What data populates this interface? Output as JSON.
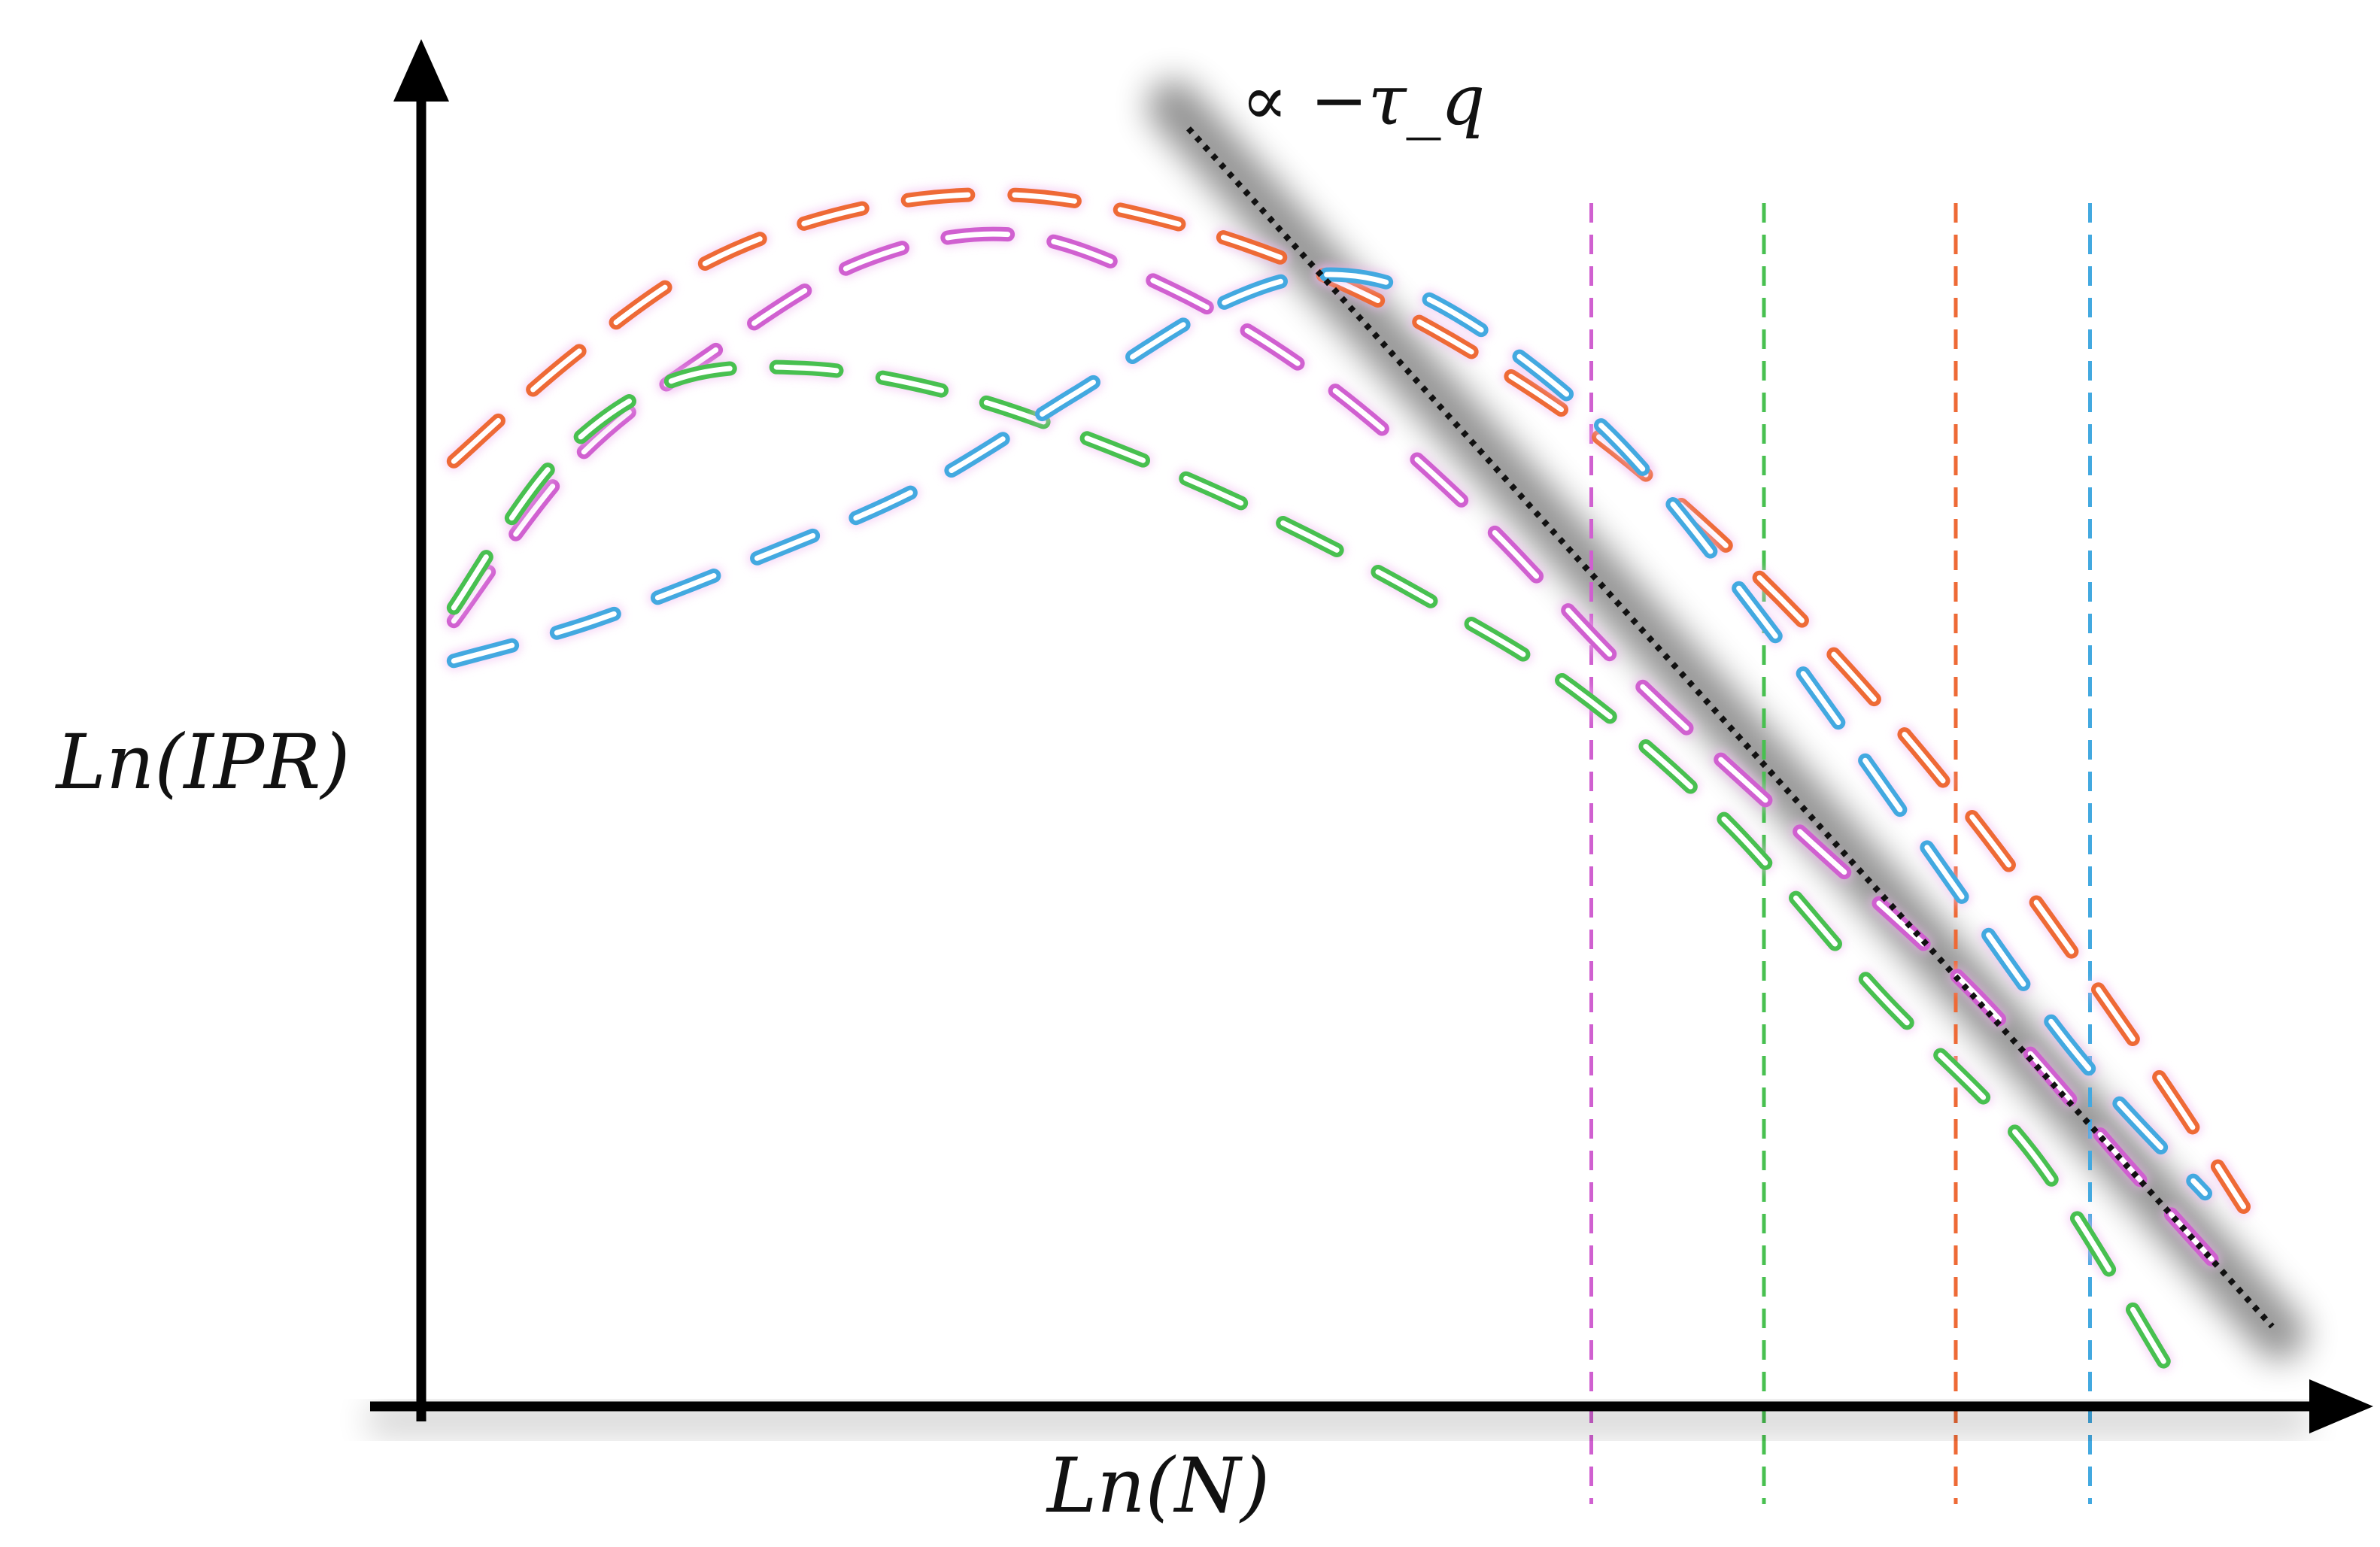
{
  "chart_data": {
    "type": "line",
    "xlabel": "Ln(N)",
    "ylabel": "Ln(IPR)",
    "xlim": [
      0,
      10
    ],
    "ylim": [
      0,
      10
    ],
    "grid": false,
    "legend": "none",
    "annotation": "∝ −τ_q",
    "series": [
      {
        "color": "#ee6a36",
        "style": "dashed",
        "x": [
          0.17,
          0.8,
          1.5,
          2.3,
          3.1,
          3.9,
          4.7,
          5.5,
          6.3,
          7.2,
          8.1,
          9.0,
          9.5
        ],
        "y": [
          7.1,
          7.9,
          8.6,
          9.0,
          9.1,
          8.9,
          8.5,
          7.9,
          7.1,
          5.9,
          4.4,
          2.6,
          1.5
        ]
      },
      {
        "color": "#d060d0",
        "style": "dashed",
        "x": [
          0.17,
          0.8,
          1.5,
          2.3,
          3.1,
          3.9,
          4.7,
          5.5,
          6.3,
          7.2,
          8.1,
          8.9,
          9.4
        ],
        "y": [
          5.9,
          7.1,
          7.9,
          8.6,
          8.8,
          8.4,
          7.7,
          6.7,
          5.5,
          4.3,
          3.1,
          1.8,
          1.0
        ]
      },
      {
        "color": "#48c050",
        "style": "dashed",
        "x": [
          0.17,
          0.7,
          1.3,
          2.0,
          2.8,
          3.6,
          4.4,
          5.2,
          6.0,
          6.8,
          7.6,
          8.4,
          9.1
        ],
        "y": [
          6.0,
          7.1,
          7.7,
          7.8,
          7.6,
          7.2,
          6.7,
          6.1,
          5.4,
          4.4,
          3.1,
          1.9,
          0.3
        ]
      },
      {
        "color": "#43a9e0",
        "style": "dashed",
        "x": [
          0.17,
          0.9,
          1.8,
          2.6,
          3.4,
          4.2,
          4.8,
          5.4,
          6.2,
          7.0,
          7.8,
          8.6,
          9.3
        ],
        "y": [
          5.6,
          5.9,
          6.4,
          6.9,
          7.6,
          8.3,
          8.5,
          8.2,
          7.3,
          5.9,
          4.3,
          2.7,
          1.6
        ]
      }
    ],
    "scaling_line": {
      "color": "#111111",
      "style": "dotted",
      "x": [
        4.0,
        9.65
      ],
      "y": [
        9.6,
        0.6
      ]
    },
    "crossover_lines": [
      {
        "x": 6.1,
        "color": "#d060d0"
      },
      {
        "x": 7.0,
        "color": "#48c050"
      },
      {
        "x": 8.0,
        "color": "#ee6a36"
      },
      {
        "x": 8.7,
        "color": "#43a9e0"
      }
    ]
  }
}
